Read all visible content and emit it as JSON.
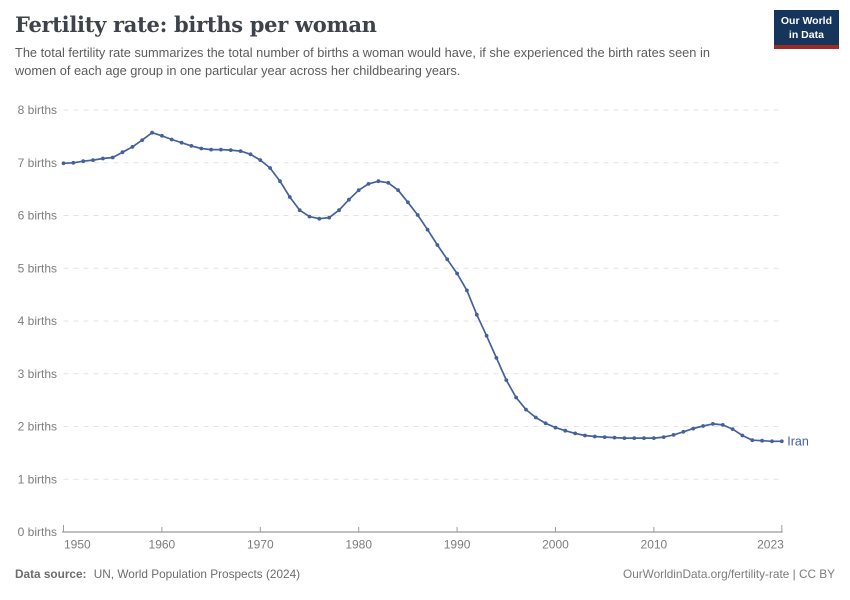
{
  "header": {
    "title": "Fertility rate: births per woman",
    "subtitle": "The total fertility rate summarizes the total number of births a woman would have, if she experienced the birth rates seen in women of each age group in one particular year across her childbearing years.",
    "logo": {
      "line1": "Our World",
      "line2": "in Data",
      "bg_color": "#16355c",
      "accent_color": "#9e2a24"
    }
  },
  "chart_data": {
    "type": "line",
    "title": "Fertility rate: births per woman",
    "xlabel": "",
    "ylabel": "births per woman",
    "xlim": [
      1950,
      2023
    ],
    "ylim": [
      0,
      8
    ],
    "xticks": [
      1950,
      1960,
      1970,
      1980,
      1990,
      2000,
      2010,
      2023
    ],
    "yticks": [
      0,
      1,
      2,
      3,
      4,
      5,
      6,
      7,
      8
    ],
    "ytick_format": "{v} births",
    "grid": "horizontal-dashed",
    "legend_position": "end-of-line-label",
    "marker": "dot",
    "x": [
      1950,
      1951,
      1952,
      1953,
      1954,
      1955,
      1956,
      1957,
      1958,
      1959,
      1960,
      1961,
      1962,
      1963,
      1964,
      1965,
      1966,
      1967,
      1968,
      1969,
      1970,
      1971,
      1972,
      1973,
      1974,
      1975,
      1976,
      1977,
      1978,
      1979,
      1980,
      1981,
      1982,
      1983,
      1984,
      1985,
      1986,
      1987,
      1988,
      1989,
      1990,
      1991,
      1992,
      1993,
      1994,
      1995,
      1996,
      1997,
      1998,
      1999,
      2000,
      2001,
      2002,
      2003,
      2004,
      2005,
      2006,
      2007,
      2008,
      2009,
      2010,
      2011,
      2012,
      2013,
      2014,
      2015,
      2016,
      2017,
      2018,
      2019,
      2020,
      2021,
      2022,
      2023
    ],
    "series": [
      {
        "name": "Iran",
        "color": "#44619b",
        "values": [
          6.99,
          7.0,
          7.03,
          7.05,
          7.08,
          7.1,
          7.2,
          7.3,
          7.43,
          7.57,
          7.51,
          7.44,
          7.38,
          7.32,
          7.27,
          7.25,
          7.25,
          7.24,
          7.22,
          7.16,
          7.05,
          6.9,
          6.65,
          6.35,
          6.1,
          5.98,
          5.94,
          5.96,
          6.1,
          6.3,
          6.48,
          6.6,
          6.65,
          6.62,
          6.48,
          6.25,
          6.01,
          5.73,
          5.44,
          5.17,
          4.9,
          4.58,
          4.12,
          3.72,
          3.3,
          2.88,
          2.55,
          2.32,
          2.17,
          2.06,
          1.98,
          1.92,
          1.87,
          1.83,
          1.81,
          1.8,
          1.79,
          1.78,
          1.78,
          1.78,
          1.78,
          1.8,
          1.84,
          1.9,
          1.96,
          2.01,
          2.05,
          2.03,
          1.95,
          1.83,
          1.74,
          1.73,
          1.72,
          1.72
        ]
      }
    ]
  },
  "footer": {
    "datasource_label": "Data source:",
    "datasource_value": "UN, World Population Prospects (2024)",
    "credit": "OurWorldinData.org/fertility-rate | CC BY"
  }
}
